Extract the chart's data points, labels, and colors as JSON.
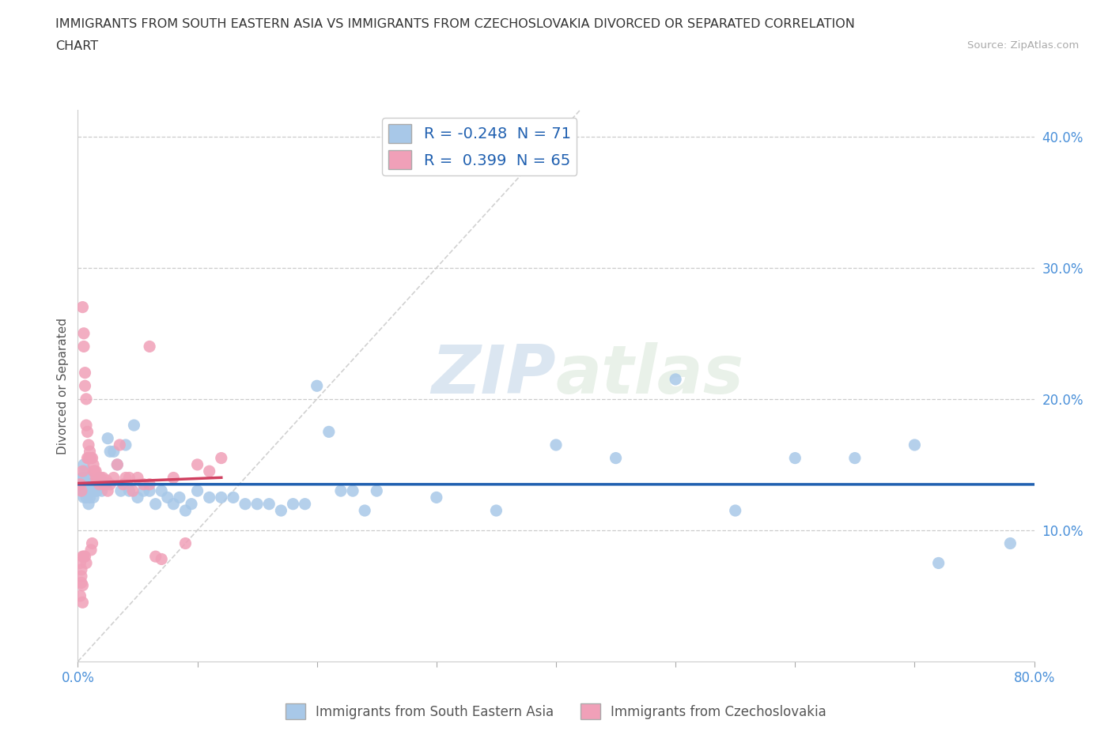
{
  "title_line1": "IMMIGRANTS FROM SOUTH EASTERN ASIA VS IMMIGRANTS FROM CZECHOSLOVAKIA DIVORCED OR SEPARATED CORRELATION",
  "title_line2": "CHART",
  "source": "Source: ZipAtlas.com",
  "ylabel": "Divorced or Separated",
  "xlim": [
    0.0,
    0.8
  ],
  "ylim": [
    0.0,
    0.42
  ],
  "blue_R": -0.248,
  "blue_N": 71,
  "pink_R": 0.399,
  "pink_N": 65,
  "blue_color": "#a8c8e8",
  "blue_line_color": "#2060b0",
  "pink_color": "#f0a0b8",
  "pink_line_color": "#d04060",
  "diagonal_color": "#cccccc",
  "watermark_zip": "ZIP",
  "watermark_atlas": "atlas",
  "legend_label_blue": "Immigrants from South Eastern Asia",
  "legend_label_pink": "Immigrants from Czechoslovakia",
  "blue_points_x": [
    0.003,
    0.004,
    0.004,
    0.005,
    0.005,
    0.005,
    0.006,
    0.006,
    0.006,
    0.007,
    0.007,
    0.008,
    0.008,
    0.009,
    0.009,
    0.01,
    0.01,
    0.011,
    0.012,
    0.013,
    0.014,
    0.015,
    0.016,
    0.018,
    0.02,
    0.022,
    0.025,
    0.027,
    0.03,
    0.033,
    0.036,
    0.04,
    0.043,
    0.047,
    0.05,
    0.055,
    0.06,
    0.065,
    0.07,
    0.075,
    0.08,
    0.085,
    0.09,
    0.095,
    0.1,
    0.11,
    0.12,
    0.13,
    0.14,
    0.15,
    0.16,
    0.17,
    0.18,
    0.19,
    0.2,
    0.21,
    0.22,
    0.23,
    0.24,
    0.25,
    0.3,
    0.35,
    0.4,
    0.45,
    0.5,
    0.55,
    0.6,
    0.65,
    0.7,
    0.72,
    0.78
  ],
  "blue_points_y": [
    0.135,
    0.14,
    0.13,
    0.15,
    0.125,
    0.14,
    0.13,
    0.145,
    0.135,
    0.125,
    0.13,
    0.14,
    0.13,
    0.135,
    0.12,
    0.135,
    0.125,
    0.13,
    0.135,
    0.125,
    0.13,
    0.135,
    0.13,
    0.14,
    0.13,
    0.135,
    0.17,
    0.16,
    0.16,
    0.15,
    0.13,
    0.165,
    0.13,
    0.18,
    0.125,
    0.13,
    0.13,
    0.12,
    0.13,
    0.125,
    0.12,
    0.125,
    0.115,
    0.12,
    0.13,
    0.125,
    0.125,
    0.125,
    0.12,
    0.12,
    0.12,
    0.115,
    0.12,
    0.12,
    0.21,
    0.175,
    0.13,
    0.13,
    0.115,
    0.13,
    0.125,
    0.115,
    0.165,
    0.155,
    0.215,
    0.115,
    0.155,
    0.155,
    0.165,
    0.075,
    0.09
  ],
  "pink_points_x": [
    0.002,
    0.002,
    0.003,
    0.003,
    0.003,
    0.004,
    0.004,
    0.004,
    0.005,
    0.005,
    0.005,
    0.006,
    0.006,
    0.006,
    0.007,
    0.007,
    0.007,
    0.008,
    0.008,
    0.009,
    0.009,
    0.01,
    0.01,
    0.011,
    0.011,
    0.012,
    0.012,
    0.013,
    0.013,
    0.014,
    0.015,
    0.015,
    0.016,
    0.017,
    0.018,
    0.019,
    0.02,
    0.021,
    0.022,
    0.023,
    0.024,
    0.025,
    0.027,
    0.03,
    0.033,
    0.035,
    0.038,
    0.04,
    0.043,
    0.046,
    0.05,
    0.055,
    0.06,
    0.065,
    0.07,
    0.08,
    0.09,
    0.1,
    0.11,
    0.12,
    0.002,
    0.003,
    0.004,
    0.004,
    0.06
  ],
  "pink_points_y": [
    0.135,
    0.05,
    0.13,
    0.06,
    0.07,
    0.27,
    0.145,
    0.08,
    0.25,
    0.24,
    0.08,
    0.22,
    0.21,
    0.08,
    0.2,
    0.18,
    0.075,
    0.175,
    0.155,
    0.165,
    0.155,
    0.16,
    0.155,
    0.155,
    0.085,
    0.155,
    0.09,
    0.15,
    0.145,
    0.145,
    0.145,
    0.14,
    0.14,
    0.138,
    0.135,
    0.14,
    0.138,
    0.14,
    0.135,
    0.135,
    0.138,
    0.13,
    0.135,
    0.14,
    0.15,
    0.165,
    0.135,
    0.14,
    0.14,
    0.13,
    0.14,
    0.135,
    0.135,
    0.08,
    0.078,
    0.14,
    0.09,
    0.15,
    0.145,
    0.155,
    0.075,
    0.065,
    0.058,
    0.045,
    0.24
  ]
}
